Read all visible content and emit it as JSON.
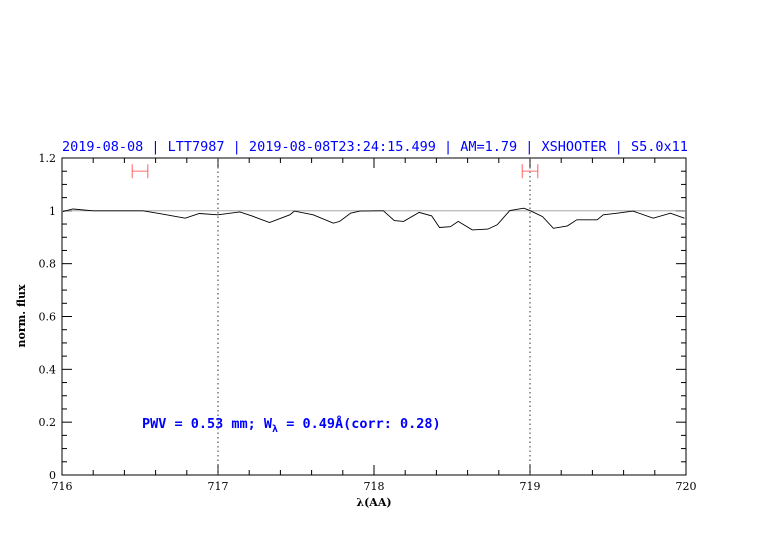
{
  "chart_data": {
    "type": "line",
    "title": "2019-08-08 | LTT7987 | 2019-08-08T23:24:15.499 | AM=1.79 | XSHOOTER | S5.0x11",
    "xlabel": "λ(AA)",
    "ylabel": "norm. flux",
    "xlim": [
      716,
      720
    ],
    "ylim": [
      0,
      1.2
    ],
    "xticks": [
      "716",
      "717",
      "718",
      "719",
      "720"
    ],
    "yticks": [
      "0",
      "0.2",
      "0.4",
      "0.6",
      "0.8",
      "1",
      "1.2"
    ],
    "grid": false,
    "annotation": {
      "prefix": "PWV = 0.53 mm; W",
      "sub": "λ",
      "suffix": " = 0.49Å(corr: 0.28)"
    },
    "reference_line_y": 1,
    "reference_line_color": "#e88080",
    "vertical_dotted_lines_x": [
      717,
      719
    ],
    "ranges": [
      {
        "x1": 716.45,
        "x2": 716.55,
        "y": 1.15
      },
      {
        "x1": 718.95,
        "x2": 719.05,
        "y": 1.15
      }
    ],
    "range_color": "#ff6060",
    "series": [
      {
        "color": "#000000",
        "x": [
          716.006,
          716.07,
          716.2,
          716.52,
          716.63,
          716.79,
          716.88,
          717.0,
          717.14,
          717.22,
          717.33,
          717.46,
          717.49,
          717.61,
          717.74,
          717.78,
          717.85,
          717.91,
          718.02,
          718.06,
          718.13,
          718.19,
          718.29,
          718.37,
          718.42,
          718.49,
          718.54,
          718.63,
          718.73,
          718.79,
          718.87,
          718.96,
          719.0,
          719.08,
          719.15,
          719.24,
          719.3,
          719.43,
          719.47,
          719.56,
          719.66,
          719.79,
          719.9,
          719.99
        ],
        "y": [
          0.997,
          1.007,
          1.0,
          1.0,
          0.989,
          0.972,
          0.99,
          0.985,
          0.996,
          0.98,
          0.956,
          0.985,
          0.999,
          0.985,
          0.953,
          0.96,
          0.991,
          0.999,
          1.0,
          1.0,
          0.963,
          0.96,
          0.994,
          0.981,
          0.937,
          0.94,
          0.96,
          0.928,
          0.931,
          0.947,
          1.001,
          1.01,
          1.001,
          0.978,
          0.934,
          0.943,
          0.966,
          0.966,
          0.985,
          0.991,
          0.999,
          0.972,
          0.991,
          0.972
        ]
      }
    ]
  }
}
